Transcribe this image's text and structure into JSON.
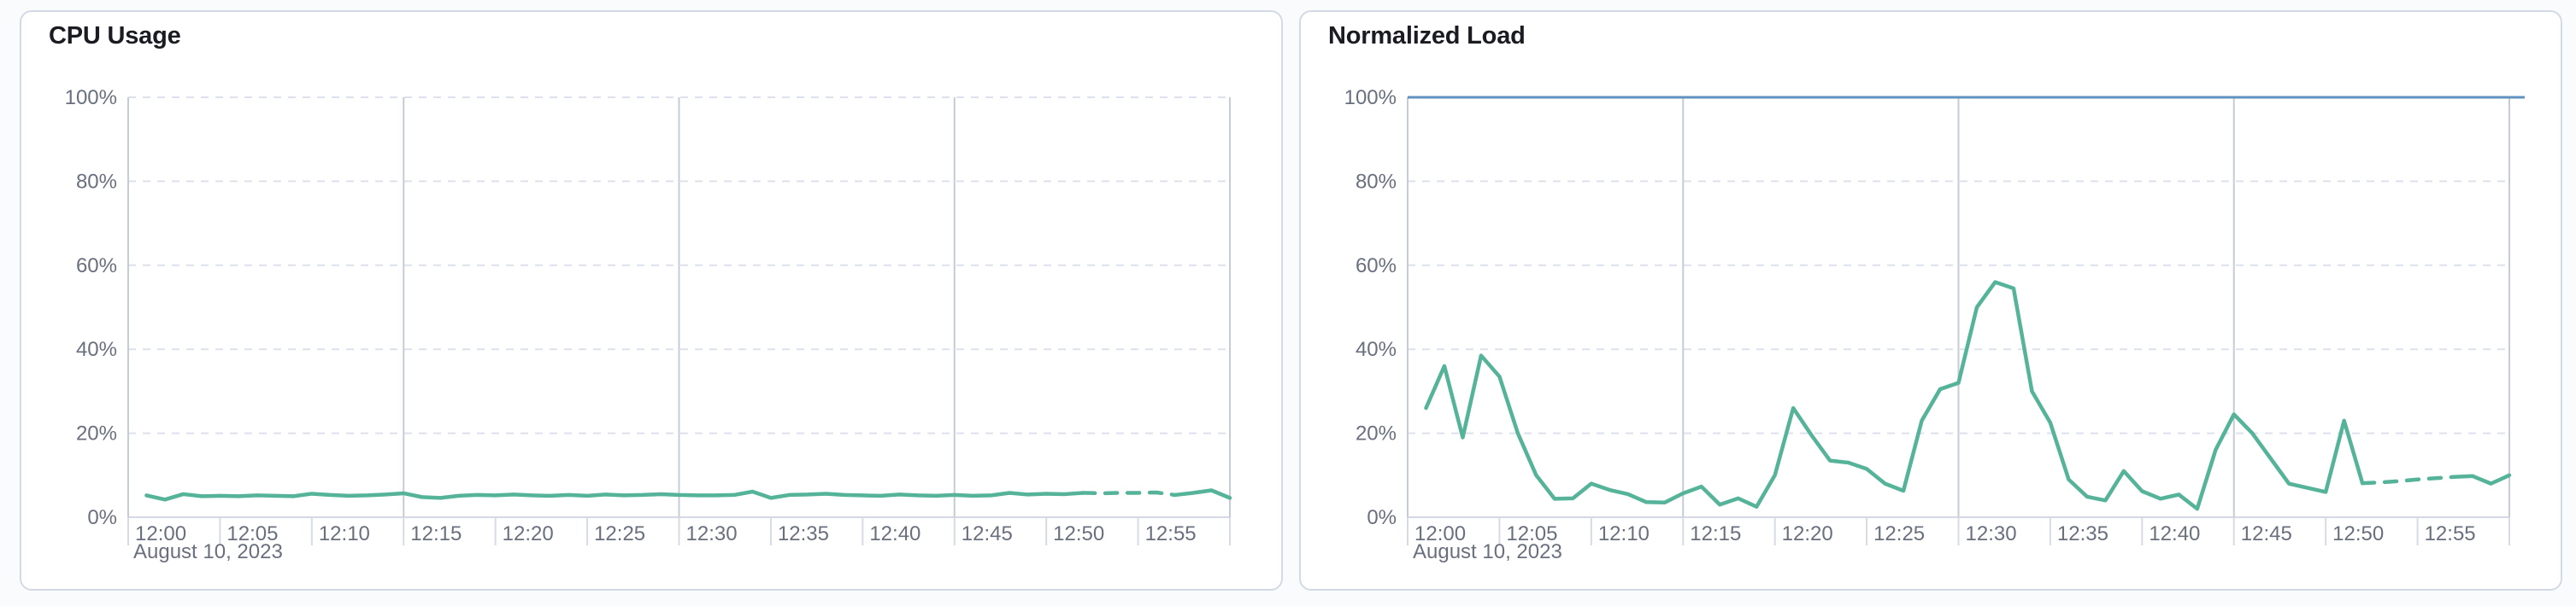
{
  "cards": [
    {
      "title": "CPU Usage"
    },
    {
      "title": "Normalized Load"
    }
  ],
  "chart_data": [
    {
      "type": "line",
      "title": "CPU Usage",
      "unit": "%",
      "x_axis": {
        "date_label": "August 10, 2023",
        "tick_labels": [
          "12:00",
          "12:05",
          "12:10",
          "12:15",
          "12:20",
          "12:25",
          "12:30",
          "12:35",
          "12:40",
          "12:45",
          "12:50",
          "12:55"
        ],
        "start": "12:00",
        "end": "13:00",
        "interval_minutes": 1,
        "major_gridline_minutes": [
          0,
          15,
          30,
          45,
          60
        ]
      },
      "y_axis": {
        "tick_labels": [
          "0%",
          "20%",
          "40%",
          "60%",
          "80%",
          "100%"
        ],
        "range": [
          0,
          100
        ],
        "gridlines": "dashed"
      },
      "series": [
        {
          "name": "cpu-usage",
          "color": "#54B399",
          "start_minute": 1,
          "values_percent": [
            5.2,
            4.2,
            5.5,
            5.0,
            5.1,
            5.0,
            5.2,
            5.1,
            5.0,
            5.6,
            5.3,
            5.1,
            5.2,
            5.4,
            5.7,
            4.8,
            4.6,
            5.1,
            5.3,
            5.2,
            5.4,
            5.2,
            5.1,
            5.3,
            5.1,
            5.4,
            5.2,
            5.3,
            5.5,
            5.3,
            5.2,
            5.2,
            5.3,
            6.1,
            4.6,
            5.3,
            5.4,
            5.6,
            5.3,
            5.2,
            5.1,
            5.4,
            5.2,
            5.1,
            5.3,
            5.1,
            5.2,
            5.8,
            5.4,
            5.6,
            5.5,
            5.8,
            5.7,
            5.8,
            5.8,
            5.9,
            5.3,
            5.8,
            6.4,
            4.6
          ],
          "dashed_from_minute": 52,
          "dashed_to_minute": 57
        }
      ]
    },
    {
      "type": "line",
      "title": "Normalized Load",
      "unit": "%",
      "x_axis": {
        "date_label": "August 10, 2023",
        "tick_labels": [
          "12:00",
          "12:05",
          "12:10",
          "12:15",
          "12:20",
          "12:25",
          "12:30",
          "12:35",
          "12:40",
          "12:45",
          "12:50",
          "12:55"
        ],
        "start": "12:00",
        "end": "13:00",
        "interval_minutes": 1,
        "major_gridline_minutes": [
          0,
          15,
          30,
          45,
          60
        ]
      },
      "y_axis": {
        "tick_labels": [
          "0%",
          "20%",
          "40%",
          "60%",
          "80%",
          "100%"
        ],
        "range": [
          0,
          100
        ],
        "gridlines": "dashed"
      },
      "reference_line": {
        "value_percent": 100,
        "color": "#6092C0"
      },
      "series": [
        {
          "name": "normalized-load",
          "color": "#54B399",
          "start_minute": 1,
          "values_percent": [
            26,
            36,
            19,
            38.5,
            33.5,
            20,
            10,
            4.4,
            4.5,
            8,
            6.5,
            5.5,
            3.6,
            3.5,
            5.7,
            7.3,
            3,
            4.5,
            2.5,
            10,
            26,
            19.5,
            13.5,
            13,
            11.5,
            8,
            6.3,
            23,
            30.5,
            32,
            50,
            56,
            54.5,
            30,
            22.5,
            9,
            4.9,
            4,
            11,
            6.2,
            4.4,
            5.4,
            2,
            16,
            24.5,
            20,
            14,
            8,
            7,
            6,
            23,
            8.1,
            8.3,
            8.6,
            9,
            9.3,
            9.6,
            9.8,
            8,
            10
          ],
          "dashed_from_minute": 52,
          "dashed_to_minute": 57
        }
      ]
    }
  ]
}
